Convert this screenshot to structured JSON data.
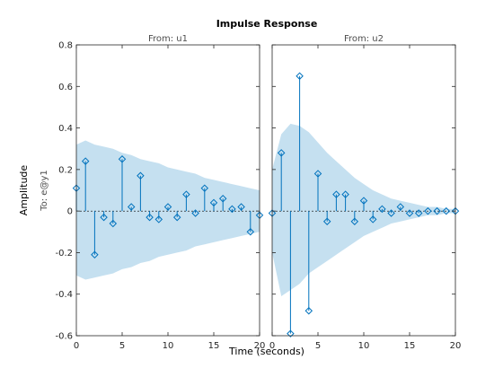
{
  "chart_data": {
    "type": "stem",
    "title": "Impulse Response",
    "xlabel": "Time (seconds)",
    "ylabel": "Amplitude",
    "row_label": "To: e@y1",
    "ylim": [
      -0.6,
      0.8
    ],
    "yticks": [
      "-0.6",
      "-0.4",
      "-0.2",
      "0",
      "0.2",
      "0.4",
      "0.6",
      "0.8"
    ],
    "ytick_values": [
      -0.6,
      -0.4,
      -0.2,
      0,
      0.2,
      0.4,
      0.6,
      0.8
    ],
    "colors": {
      "stem": "#0072BD",
      "band": "#C5E0F0",
      "axis": "#262626"
    },
    "panels": [
      {
        "subtitle": "From: u1",
        "xlim": [
          0,
          20
        ],
        "xticks": [
          "0",
          "5",
          "10",
          "15",
          "20"
        ],
        "xtick_values": [
          0,
          5,
          10,
          15,
          20
        ],
        "x": [
          0,
          1,
          2,
          3,
          4,
          5,
          6,
          7,
          8,
          9,
          10,
          11,
          12,
          13,
          14,
          15,
          16,
          17,
          18,
          19,
          20
        ],
        "values": [
          0.11,
          0.24,
          -0.21,
          -0.03,
          -0.06,
          0.25,
          0.02,
          0.17,
          -0.03,
          -0.04,
          0.02,
          -0.03,
          0.08,
          -0.01,
          0.11,
          0.04,
          0.06,
          0.01,
          0.02,
          -0.1,
          -0.02
        ],
        "band_x": [
          0,
          1,
          2,
          3,
          4,
          5,
          6,
          7,
          8,
          9,
          10,
          11,
          12,
          13,
          14,
          15,
          16,
          17,
          18,
          19,
          20
        ],
        "band_upper": [
          0.32,
          0.34,
          0.32,
          0.31,
          0.3,
          0.28,
          0.27,
          0.25,
          0.24,
          0.23,
          0.21,
          0.2,
          0.19,
          0.18,
          0.16,
          0.15,
          0.14,
          0.13,
          0.12,
          0.11,
          0.1
        ],
        "band_lower": [
          -0.31,
          -0.33,
          -0.32,
          -0.31,
          -0.3,
          -0.28,
          -0.27,
          -0.25,
          -0.24,
          -0.22,
          -0.21,
          -0.2,
          -0.19,
          -0.17,
          -0.16,
          -0.15,
          -0.14,
          -0.13,
          -0.12,
          -0.11,
          -0.1
        ]
      },
      {
        "subtitle": "From: u2",
        "xlim": [
          0,
          20
        ],
        "xticks": [
          "0",
          "5",
          "10",
          "15",
          "20"
        ],
        "xtick_values": [
          0,
          5,
          10,
          15,
          20
        ],
        "x": [
          0,
          1,
          2,
          3,
          4,
          5,
          6,
          7,
          8,
          9,
          10,
          11,
          12,
          13,
          14,
          15,
          16,
          17,
          18,
          19,
          20
        ],
        "values": [
          -0.01,
          0.28,
          -0.59,
          0.65,
          -0.48,
          0.18,
          -0.05,
          0.08,
          0.08,
          -0.05,
          0.05,
          -0.04,
          0.01,
          -0.01,
          0.02,
          -0.01,
          -0.01,
          0.0,
          0.0,
          0.0,
          0.0
        ],
        "band_x": [
          0,
          1,
          2,
          3,
          4,
          5,
          6,
          7,
          8,
          9,
          10,
          11,
          12,
          13,
          14,
          15,
          16,
          17,
          18,
          19,
          20
        ],
        "band_upper": [
          0.2,
          0.37,
          0.42,
          0.41,
          0.38,
          0.33,
          0.28,
          0.24,
          0.2,
          0.16,
          0.13,
          0.1,
          0.08,
          0.06,
          0.05,
          0.04,
          0.03,
          0.02,
          0.02,
          0.01,
          0.01
        ],
        "band_lower": [
          -0.2,
          -0.41,
          -0.38,
          -0.35,
          -0.3,
          -0.27,
          -0.24,
          -0.21,
          -0.18,
          -0.15,
          -0.12,
          -0.1,
          -0.08,
          -0.06,
          -0.05,
          -0.04,
          -0.03,
          -0.02,
          -0.02,
          -0.01,
          -0.01
        ]
      }
    ]
  }
}
